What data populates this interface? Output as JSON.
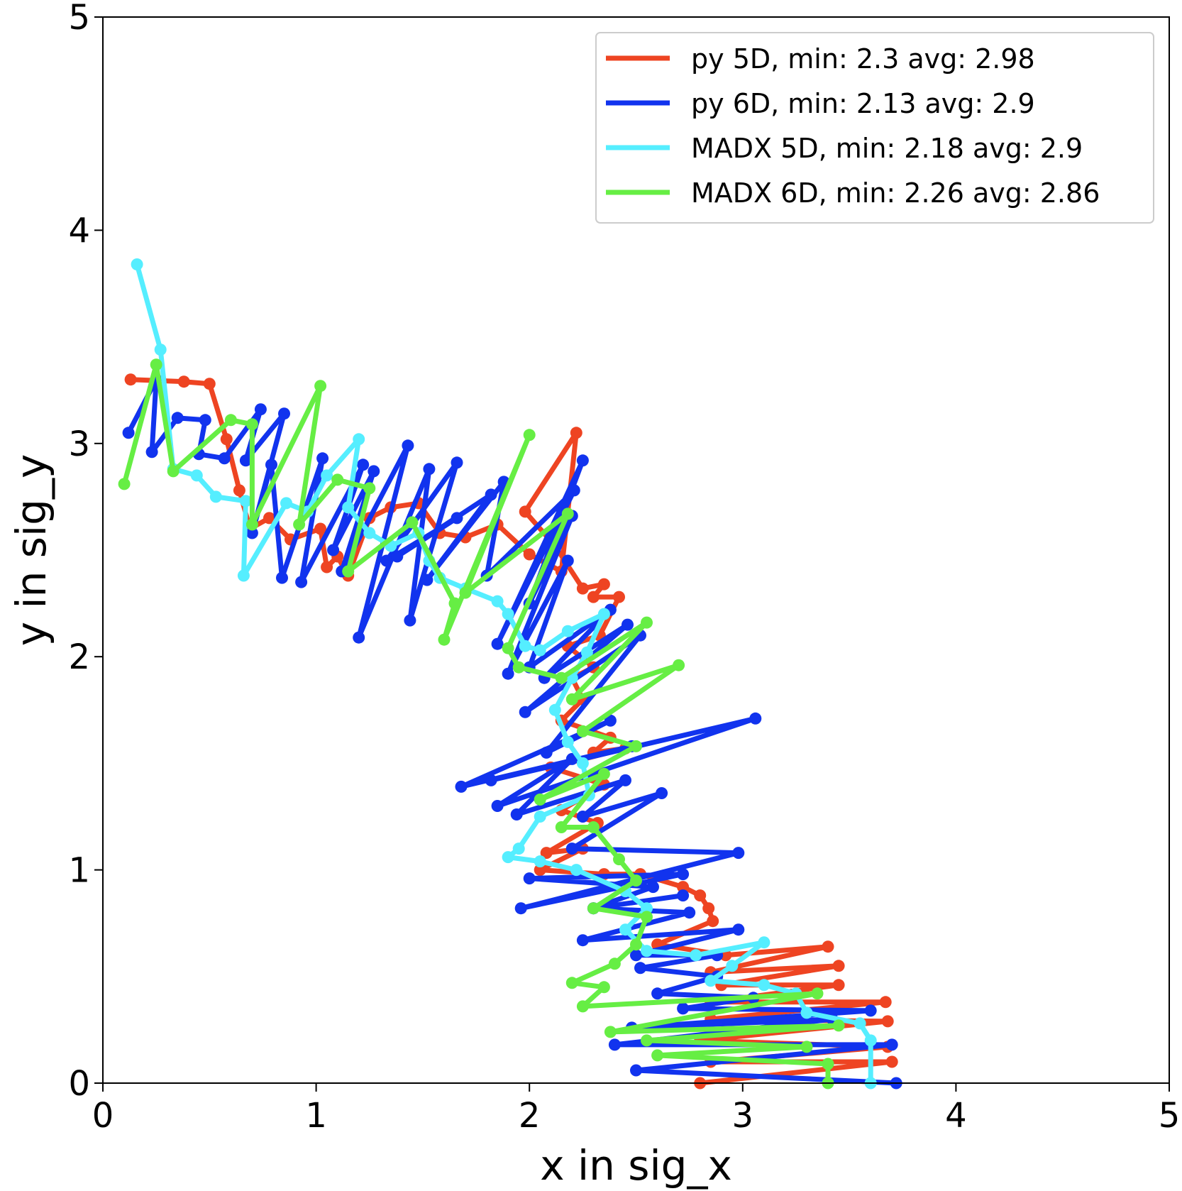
{
  "chart_data": {
    "type": "line",
    "title": "",
    "xlabel": "x in sig_x",
    "ylabel": "y in sig_y",
    "xlim": [
      0,
      5
    ],
    "ylim": [
      0,
      5
    ],
    "xticks": [
      "0",
      "1",
      "2",
      "3",
      "4",
      "5"
    ],
    "yticks": [
      "0",
      "1",
      "2",
      "3",
      "4",
      "5"
    ],
    "grid": false,
    "legend_position": "top-right",
    "series": [
      {
        "name": "py 5D, min: 2.3 avg: 2.98",
        "color": "#ee4422",
        "points": [
          [
            0.13,
            3.3
          ],
          [
            0.38,
            3.29
          ],
          [
            0.5,
            3.28
          ],
          [
            0.58,
            3.02
          ],
          [
            0.64,
            2.78
          ],
          [
            0.69,
            2.6
          ],
          [
            0.78,
            2.65
          ],
          [
            0.88,
            2.55
          ],
          [
            1.02,
            2.6
          ],
          [
            1.05,
            2.42
          ],
          [
            1.1,
            2.47
          ],
          [
            1.15,
            2.38
          ],
          [
            1.25,
            2.65
          ],
          [
            1.35,
            2.7
          ],
          [
            1.48,
            2.72
          ],
          [
            1.58,
            2.58
          ],
          [
            1.7,
            2.56
          ],
          [
            1.85,
            2.62
          ],
          [
            2.0,
            2.48
          ],
          [
            2.15,
            2.4
          ],
          [
            2.22,
            3.05
          ],
          [
            1.98,
            2.68
          ],
          [
            2.12,
            2.52
          ],
          [
            2.25,
            2.32
          ],
          [
            2.35,
            2.34
          ],
          [
            2.3,
            2.28
          ],
          [
            2.42,
            2.28
          ],
          [
            2.33,
            2.1
          ],
          [
            2.18,
            2.05
          ],
          [
            2.3,
            1.95
          ],
          [
            2.2,
            1.9
          ],
          [
            2.25,
            1.8
          ],
          [
            2.15,
            1.7
          ],
          [
            2.38,
            1.62
          ],
          [
            2.3,
            1.55
          ],
          [
            2.45,
            1.57
          ],
          [
            2.1,
            1.48
          ],
          [
            2.35,
            1.4
          ],
          [
            2.15,
            1.28
          ],
          [
            2.32,
            1.22
          ],
          [
            2.08,
            1.08
          ],
          [
            2.25,
            1.1
          ],
          [
            2.05,
            1.0
          ],
          [
            2.35,
            0.98
          ],
          [
            2.52,
            0.98
          ],
          [
            2.72,
            0.92
          ],
          [
            2.8,
            0.88
          ],
          [
            2.84,
            0.82
          ],
          [
            2.86,
            0.76
          ],
          [
            2.6,
            0.65
          ],
          [
            2.92,
            0.6
          ],
          [
            3.4,
            0.64
          ],
          [
            2.85,
            0.52
          ],
          [
            3.45,
            0.55
          ],
          [
            2.9,
            0.46
          ],
          [
            3.45,
            0.46
          ],
          [
            2.85,
            0.38
          ],
          [
            3.67,
            0.38
          ],
          [
            2.85,
            0.3
          ],
          [
            3.68,
            0.29
          ],
          [
            2.8,
            0.2
          ],
          [
            3.68,
            0.17
          ],
          [
            2.85,
            0.1
          ],
          [
            3.7,
            0.1
          ],
          [
            2.8,
            0.0
          ]
        ]
      },
      {
        "name": "py 6D, min: 2.13 avg: 2.9",
        "color": "#1133ee",
        "points": [
          [
            0.12,
            3.05
          ],
          [
            0.25,
            3.3
          ],
          [
            0.23,
            2.96
          ],
          [
            0.35,
            3.12
          ],
          [
            0.48,
            3.11
          ],
          [
            0.45,
            2.95
          ],
          [
            0.57,
            2.93
          ],
          [
            0.74,
            3.16
          ],
          [
            0.67,
            2.92
          ],
          [
            0.85,
            3.14
          ],
          [
            0.7,
            2.58
          ],
          [
            0.79,
            2.9
          ],
          [
            0.84,
            2.37
          ],
          [
            1.03,
            2.93
          ],
          [
            0.93,
            2.35
          ],
          [
            1.22,
            2.9
          ],
          [
            1.08,
            2.5
          ],
          [
            1.27,
            2.87
          ],
          [
            1.12,
            2.4
          ],
          [
            1.43,
            2.99
          ],
          [
            1.2,
            2.09
          ],
          [
            1.53,
            2.88
          ],
          [
            1.44,
            2.17
          ],
          [
            1.66,
            2.91
          ],
          [
            1.33,
            2.45
          ],
          [
            1.66,
            2.65
          ],
          [
            1.38,
            2.47
          ],
          [
            1.82,
            2.76
          ],
          [
            1.52,
            2.36
          ],
          [
            1.88,
            2.82
          ],
          [
            1.8,
            2.38
          ],
          [
            2.21,
            2.78
          ],
          [
            1.85,
            2.06
          ],
          [
            2.25,
            2.92
          ],
          [
            2.0,
            2.25
          ],
          [
            2.2,
            2.66
          ],
          [
            1.9,
            1.92
          ],
          [
            2.18,
            2.45
          ],
          [
            2.0,
            1.95
          ],
          [
            2.38,
            2.22
          ],
          [
            2.07,
            1.9
          ],
          [
            2.46,
            2.15
          ],
          [
            1.98,
            1.74
          ],
          [
            2.52,
            2.1
          ],
          [
            2.08,
            1.55
          ],
          [
            2.38,
            1.7
          ],
          [
            1.68,
            1.39
          ],
          [
            2.48,
            1.58
          ],
          [
            1.82,
            1.42
          ],
          [
            3.06,
            1.71
          ],
          [
            1.85,
            1.3
          ],
          [
            2.2,
            1.52
          ],
          [
            1.94,
            1.26
          ],
          [
            2.45,
            1.42
          ],
          [
            2.25,
            1.25
          ],
          [
            2.62,
            1.36
          ],
          [
            2.2,
            1.1
          ],
          [
            2.98,
            1.08
          ],
          [
            1.96,
            0.82
          ],
          [
            2.72,
            0.98
          ],
          [
            2.0,
            0.96
          ],
          [
            2.58,
            0.92
          ],
          [
            2.3,
            0.82
          ],
          [
            2.72,
            0.88
          ],
          [
            2.3,
            0.82
          ],
          [
            2.75,
            0.8
          ],
          [
            2.25,
            0.67
          ],
          [
            2.98,
            0.72
          ],
          [
            2.5,
            0.6
          ],
          [
            2.88,
            0.6
          ],
          [
            2.52,
            0.54
          ],
          [
            2.88,
            0.5
          ],
          [
            2.6,
            0.42
          ],
          [
            3.05,
            0.4
          ],
          [
            2.72,
            0.35
          ],
          [
            3.6,
            0.34
          ],
          [
            2.48,
            0.26
          ],
          [
            3.42,
            0.3
          ],
          [
            2.4,
            0.18
          ],
          [
            3.7,
            0.18
          ],
          [
            2.5,
            0.06
          ],
          [
            3.72,
            0.0
          ]
        ]
      },
      {
        "name": "MADX 5D, min: 2.18 avg: 2.9",
        "color": "#55eeff",
        "points": [
          [
            0.16,
            3.84
          ],
          [
            0.27,
            3.44
          ],
          [
            0.33,
            2.88
          ],
          [
            0.44,
            2.85
          ],
          [
            0.53,
            2.75
          ],
          [
            0.67,
            2.73
          ],
          [
            0.66,
            2.38
          ],
          [
            0.86,
            2.72
          ],
          [
            0.96,
            2.68
          ],
          [
            1.05,
            2.85
          ],
          [
            1.2,
            3.02
          ],
          [
            1.15,
            2.7
          ],
          [
            1.25,
            2.58
          ],
          [
            1.35,
            2.52
          ],
          [
            1.48,
            2.58
          ],
          [
            1.53,
            2.45
          ],
          [
            1.58,
            2.37
          ],
          [
            1.7,
            2.32
          ],
          [
            1.85,
            2.26
          ],
          [
            1.9,
            2.2
          ],
          [
            1.98,
            2.05
          ],
          [
            2.05,
            2.03
          ],
          [
            2.18,
            2.12
          ],
          [
            2.35,
            2.2
          ],
          [
            2.27,
            2.02
          ],
          [
            2.2,
            1.9
          ],
          [
            2.12,
            1.75
          ],
          [
            2.18,
            1.6
          ],
          [
            2.25,
            1.5
          ],
          [
            2.28,
            1.35
          ],
          [
            2.05,
            1.25
          ],
          [
            1.95,
            1.1
          ],
          [
            1.9,
            1.06
          ],
          [
            2.05,
            1.04
          ],
          [
            2.22,
            1.0
          ],
          [
            2.45,
            0.9
          ],
          [
            2.55,
            0.82
          ],
          [
            2.45,
            0.72
          ],
          [
            2.55,
            0.62
          ],
          [
            2.78,
            0.6
          ],
          [
            3.1,
            0.66
          ],
          [
            2.95,
            0.55
          ],
          [
            2.85,
            0.48
          ],
          [
            3.1,
            0.46
          ],
          [
            3.25,
            0.42
          ],
          [
            3.3,
            0.33
          ],
          [
            3.55,
            0.28
          ],
          [
            3.6,
            0.2
          ],
          [
            3.6,
            0.0
          ]
        ]
      },
      {
        "name": "MADX 6D, min: 2.26 avg: 2.86",
        "color": "#66ee44",
        "points": [
          [
            0.1,
            2.81
          ],
          [
            0.25,
            3.37
          ],
          [
            0.33,
            2.87
          ],
          [
            0.6,
            3.11
          ],
          [
            0.7,
            3.09
          ],
          [
            0.7,
            2.62
          ],
          [
            1.02,
            3.27
          ],
          [
            0.92,
            2.62
          ],
          [
            1.1,
            2.83
          ],
          [
            1.25,
            2.79
          ],
          [
            1.15,
            2.4
          ],
          [
            1.45,
            2.63
          ],
          [
            1.65,
            2.25
          ],
          [
            1.6,
            2.08
          ],
          [
            2.0,
            3.04
          ],
          [
            1.7,
            2.3
          ],
          [
            2.18,
            2.67
          ],
          [
            1.9,
            2.04
          ],
          [
            1.95,
            1.95
          ],
          [
            2.15,
            1.9
          ],
          [
            2.55,
            2.16
          ],
          [
            2.2,
            1.8
          ],
          [
            2.7,
            1.96
          ],
          [
            2.25,
            1.65
          ],
          [
            2.5,
            1.58
          ],
          [
            2.05,
            1.33
          ],
          [
            2.35,
            1.45
          ],
          [
            2.15,
            1.2
          ],
          [
            2.3,
            1.2
          ],
          [
            2.42,
            1.05
          ],
          [
            2.5,
            0.95
          ],
          [
            2.3,
            0.82
          ],
          [
            2.55,
            0.78
          ],
          [
            2.5,
            0.65
          ],
          [
            2.4,
            0.56
          ],
          [
            2.2,
            0.47
          ],
          [
            2.35,
            0.45
          ],
          [
            2.25,
            0.36
          ],
          [
            3.35,
            0.42
          ],
          [
            2.38,
            0.24
          ],
          [
            3.45,
            0.27
          ],
          [
            2.55,
            0.2
          ],
          [
            3.3,
            0.17
          ],
          [
            2.6,
            0.13
          ],
          [
            3.4,
            0.09
          ],
          [
            3.4,
            0.0
          ]
        ]
      }
    ]
  }
}
